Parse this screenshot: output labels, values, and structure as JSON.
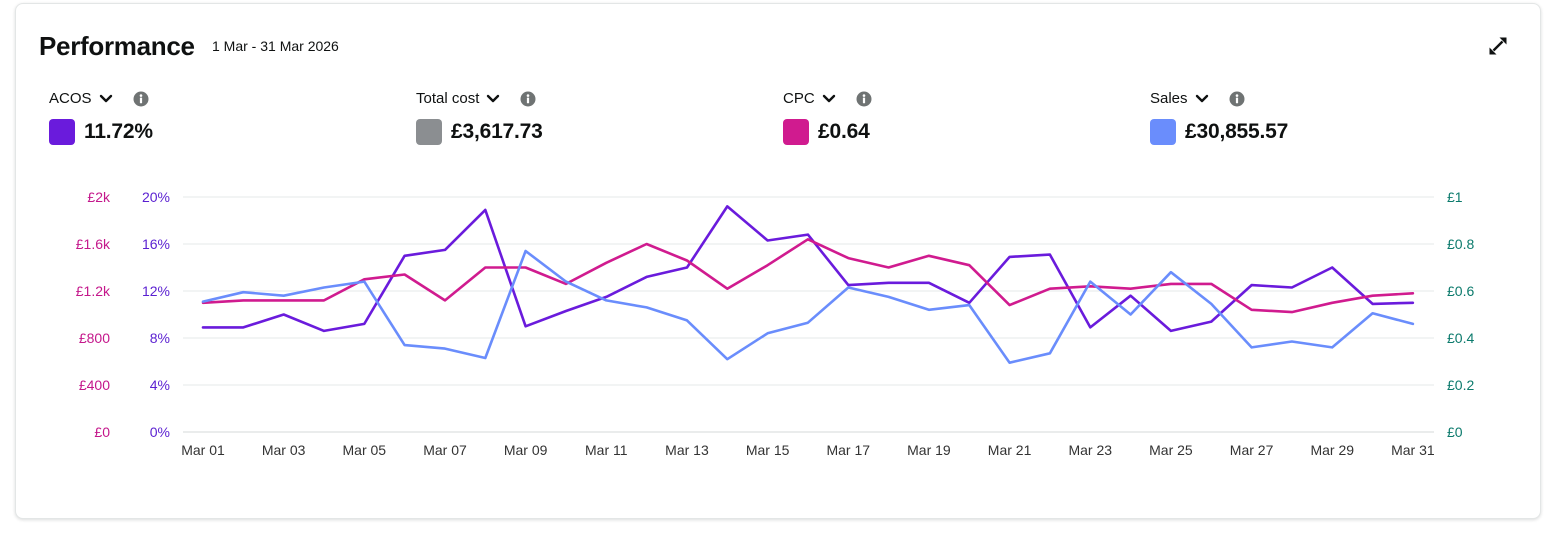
{
  "header": {
    "title": "Performance",
    "date_range": "1 Mar - 31 Mar 2026"
  },
  "icons": {
    "expand": "expand-icon",
    "dropdown": "chevron-down-icon",
    "info": "info-icon"
  },
  "metrics": [
    {
      "label": "ACOS",
      "value": "11.72%",
      "color": "#6a1bdc"
    },
    {
      "label": "Total cost",
      "value": "£3,617.73",
      "color": "#8b8e91"
    },
    {
      "label": "CPC",
      "value": "£0.64",
      "color": "#d01b8f"
    },
    {
      "label": "Sales",
      "value": "£30,855.57",
      "color": "#6a8dfc"
    }
  ],
  "chart_data": {
    "type": "line",
    "grid": true,
    "legend": "top",
    "x": [
      "Mar 01",
      "Mar 02",
      "Mar 03",
      "Mar 04",
      "Mar 05",
      "Mar 06",
      "Mar 07",
      "Mar 08",
      "Mar 09",
      "Mar 10",
      "Mar 11",
      "Mar 12",
      "Mar 13",
      "Mar 14",
      "Mar 15",
      "Mar 16",
      "Mar 17",
      "Mar 18",
      "Mar 19",
      "Mar 20",
      "Mar 21",
      "Mar 22",
      "Mar 23",
      "Mar 24",
      "Mar 25",
      "Mar 26",
      "Mar 27",
      "Mar 28",
      "Mar 29",
      "Mar 30",
      "Mar 31"
    ],
    "y_axes": [
      {
        "position": "left-outer",
        "ticks": [
          "£2k",
          "£1.6k",
          "£1.2k",
          "£800",
          "£400",
          "£0"
        ],
        "range": [
          0,
          2000
        ],
        "color": "#c4178b"
      },
      {
        "position": "left-inner",
        "ticks": [
          "20%",
          "16%",
          "12%",
          "8%",
          "4%",
          "0%"
        ],
        "range": [
          0,
          20
        ],
        "color": "#5a1fd1"
      },
      {
        "position": "right",
        "ticks": [
          "£1",
          "£0.8",
          "£0.6",
          "£0.4",
          "£0.2",
          "£0"
        ],
        "range": [
          0,
          1
        ],
        "color": "#0b7a6c"
      }
    ],
    "series": [
      {
        "name": "ACOS",
        "y_axis": 1,
        "color": "#6a1bdc",
        "values": [
          8.9,
          8.9,
          10.0,
          8.6,
          9.2,
          15.0,
          15.5,
          18.9,
          9.0,
          10.3,
          11.5,
          13.2,
          14.0,
          19.2,
          16.3,
          16.8,
          12.5,
          12.7,
          12.7,
          11.0,
          14.9,
          15.1,
          8.9,
          11.6,
          8.6,
          9.4,
          12.5,
          12.3,
          14.0,
          10.9,
          11.0
        ]
      },
      {
        "name": "CPC",
        "y_axis": 2,
        "color": "#d01b8f",
        "values": [
          0.55,
          0.56,
          0.56,
          0.56,
          0.65,
          0.67,
          0.56,
          0.7,
          0.7,
          0.63,
          0.72,
          0.8,
          0.73,
          0.61,
          0.71,
          0.82,
          0.74,
          0.7,
          0.75,
          0.71,
          0.54,
          0.61,
          0.62,
          0.61,
          0.63,
          0.63,
          0.52,
          0.51,
          0.55,
          0.58,
          0.59
        ]
      },
      {
        "name": "Sales",
        "y_axis": 0,
        "color": "#6a8dfc",
        "values": [
          1110,
          1190,
          1160,
          1230,
          1280,
          740,
          710,
          630,
          1540,
          1280,
          1120,
          1060,
          950,
          620,
          840,
          930,
          1230,
          1150,
          1040,
          1080,
          590,
          670,
          1280,
          1000,
          1360,
          1090,
          720,
          770,
          720,
          1010,
          920
        ]
      }
    ]
  }
}
